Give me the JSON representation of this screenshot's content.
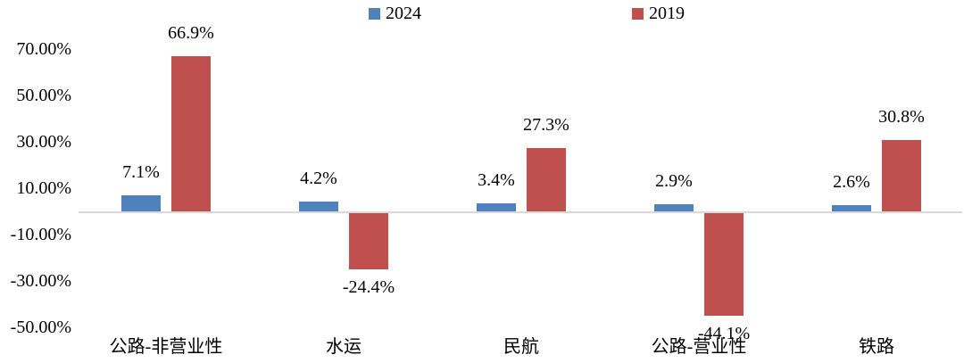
{
  "chart_data": {
    "type": "bar",
    "title": "",
    "categories": [
      "公路-非营业性",
      "水运",
      "民航",
      "公路-营业性",
      "铁路"
    ],
    "series": [
      {
        "name": "2024",
        "color": "#4F81BD",
        "values": [
          7.1,
          4.2,
          3.4,
          2.9,
          2.6
        ]
      },
      {
        "name": "2019",
        "color": "#C0504D",
        "values": [
          66.9,
          -24.4,
          27.3,
          -44.1,
          30.8
        ]
      }
    ],
    "value_labels": [
      [
        "7.1%",
        "4.2%",
        "3.4%",
        "2.9%",
        "2.6%"
      ],
      [
        "66.9%",
        "-24.4%",
        "27.3%",
        "-44.1%",
        "30.8%"
      ]
    ],
    "y_axis": {
      "min": -50,
      "max": 70,
      "ticks": [
        70,
        50,
        30,
        10,
        -10,
        -30,
        -50
      ],
      "tick_labels": [
        "70.00%",
        "50.00%",
        "30.00%",
        "10.00%",
        "-10.00%",
        "-30.00%",
        "-50.00%"
      ]
    },
    "legend": [
      {
        "label": "2024",
        "color": "#4F81BD"
      },
      {
        "label": "2019",
        "color": "#C0504D"
      }
    ],
    "legend_position": "top",
    "grid": false,
    "axis_line_color": "#D9D9D9",
    "text_color": "#000000",
    "background": "#FFFFFF"
  }
}
